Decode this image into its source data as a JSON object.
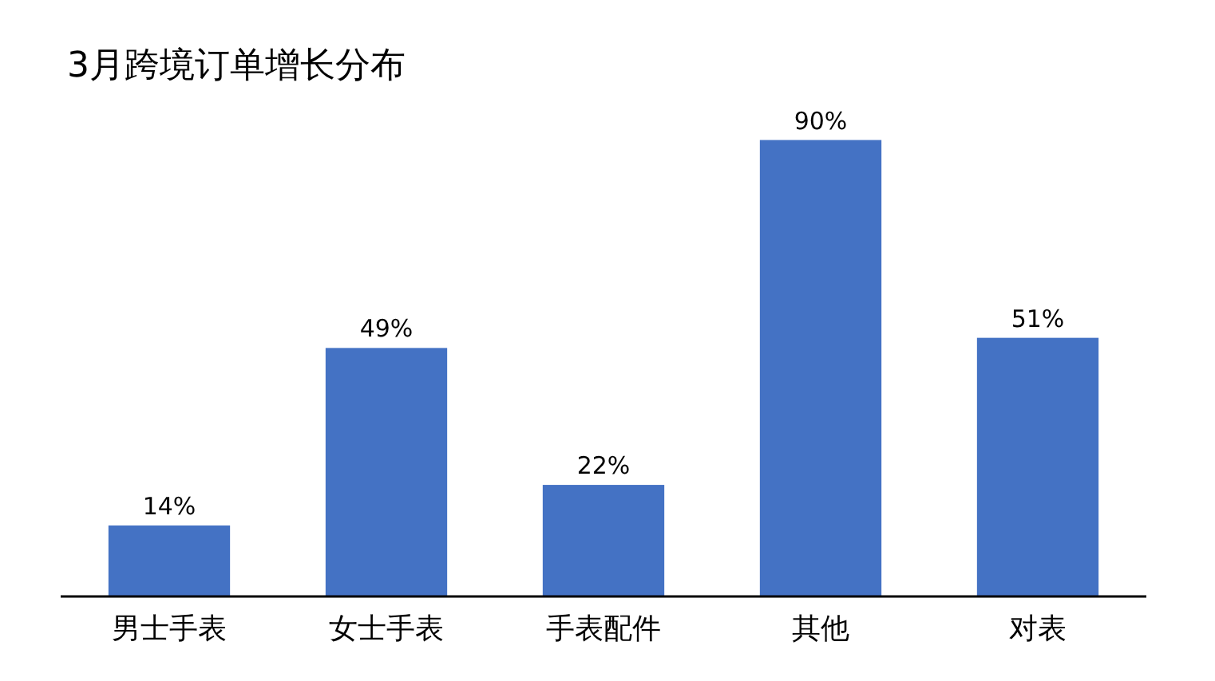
{
  "chart_data": {
    "type": "bar",
    "title": "3月跨境订单增长分布",
    "categories": [
      "男士手表",
      "女士手表",
      "手表配件",
      "其他",
      "对表"
    ],
    "values": [
      14,
      49,
      22,
      90,
      51
    ],
    "value_labels": [
      "14%",
      "49%",
      "22%",
      "90%",
      "51%"
    ],
    "color": "#4472c4",
    "grid": false,
    "legend": false
  }
}
